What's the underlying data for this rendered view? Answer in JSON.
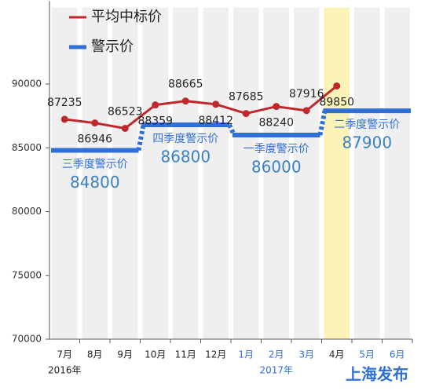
{
  "chart_data": {
    "type": "line",
    "categories": [
      "7月",
      "8月",
      "9月",
      "10月",
      "11月",
      "12月",
      "1月",
      "2月",
      "3月",
      "4月",
      "5月",
      "6月"
    ],
    "years": [
      "2016年",
      "2017年"
    ],
    "series": [
      {
        "name": "平均中标价",
        "color": "#c0282d",
        "values": [
          87235,
          86946,
          86523,
          88359,
          88665,
          88412,
          87685,
          88240,
          87916,
          89850,
          null,
          null
        ]
      },
      {
        "name": "警示价",
        "color": "#2f6fd6",
        "values": [
          84800,
          84800,
          84800,
          86800,
          86800,
          86800,
          86000,
          86000,
          86000,
          87900,
          87900,
          87900
        ]
      }
    ],
    "quarter_names": [
      "三季度警示价",
      "四季度警示价",
      "一季度警示价",
      "二季度警示价"
    ],
    "ylim": [
      70000,
      96000
    ],
    "yticks": [
      70000,
      75000,
      80000,
      85000,
      90000
    ],
    "highlight": "4月",
    "source": "上海发布"
  }
}
